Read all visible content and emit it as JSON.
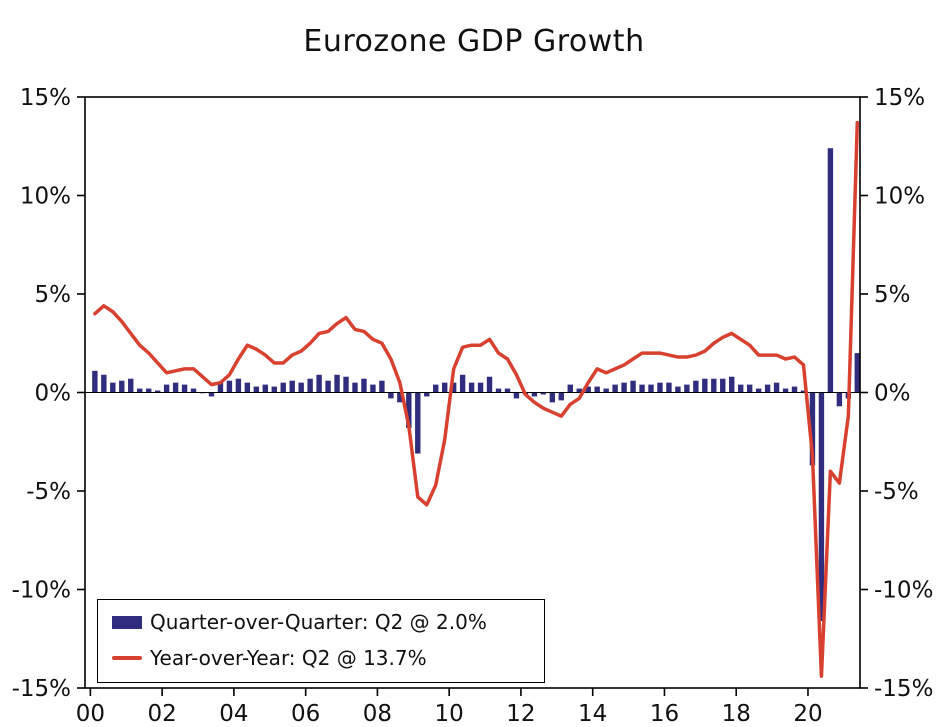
{
  "chart_data": {
    "type": "combo",
    "title": "Eurozone GDP Growth",
    "x_start": "2000Q1",
    "x_end": "2021Q2",
    "frequency": "quarterly",
    "ylim": [
      -15,
      15
    ],
    "ytick_values": [
      -15,
      -10,
      -5,
      0,
      5,
      10,
      15
    ],
    "ytick_labels": [
      "-15%",
      "-10%",
      "-5%",
      "0%",
      "5%",
      "10%",
      "15%"
    ],
    "xtick_years": [
      2000,
      2002,
      2004,
      2006,
      2008,
      2010,
      2012,
      2014,
      2016,
      2018,
      2020
    ],
    "xtick_labels": [
      "00",
      "02",
      "04",
      "06",
      "08",
      "10",
      "12",
      "14",
      "16",
      "18",
      "20"
    ],
    "grid": false,
    "legend_position": "bottom-left",
    "series": [
      {
        "name": "Quarter-over-Quarter: Q2 @ 2.0%",
        "type": "bar",
        "color": "#312d7e",
        "values": [
          1.1,
          0.9,
          0.5,
          0.6,
          0.7,
          0.2,
          0.2,
          0.1,
          0.4,
          0.5,
          0.4,
          0.2,
          0.0,
          -0.2,
          0.5,
          0.6,
          0.7,
          0.5,
          0.3,
          0.4,
          0.3,
          0.5,
          0.6,
          0.5,
          0.7,
          0.9,
          0.6,
          0.9,
          0.8,
          0.5,
          0.7,
          0.4,
          0.6,
          -0.3,
          -0.5,
          -1.8,
          -3.1,
          -0.2,
          0.4,
          0.5,
          0.5,
          0.9,
          0.5,
          0.5,
          0.8,
          0.2,
          0.2,
          -0.3,
          -0.1,
          -0.2,
          -0.1,
          -0.5,
          -0.4,
          0.4,
          0.2,
          0.3,
          0.3,
          0.2,
          0.4,
          0.5,
          0.6,
          0.4,
          0.4,
          0.5,
          0.5,
          0.3,
          0.4,
          0.6,
          0.7,
          0.7,
          0.7,
          0.8,
          0.4,
          0.4,
          0.2,
          0.4,
          0.5,
          0.2,
          0.3,
          0.1,
          -3.7,
          -11.6,
          12.4,
          -0.7,
          -0.3,
          2.0
        ]
      },
      {
        "name": "Year-over-Year: Q2 @ 13.7%",
        "type": "line",
        "color": "#d8402f",
        "values": [
          4.0,
          4.4,
          4.1,
          3.6,
          3.0,
          2.4,
          2.0,
          1.5,
          1.0,
          1.1,
          1.2,
          1.2,
          0.8,
          0.4,
          0.5,
          0.9,
          1.7,
          2.4,
          2.2,
          1.9,
          1.5,
          1.5,
          1.9,
          2.1,
          2.5,
          3.0,
          3.1,
          3.5,
          3.8,
          3.2,
          3.1,
          2.7,
          2.5,
          1.7,
          0.5,
          -1.7,
          -5.3,
          -5.7,
          -4.7,
          -2.4,
          1.2,
          2.3,
          2.4,
          2.4,
          2.7,
          2.0,
          1.7,
          0.9,
          -0.1,
          -0.5,
          -0.8,
          -1.0,
          -1.2,
          -0.6,
          -0.3,
          0.5,
          1.2,
          1.0,
          1.2,
          1.4,
          1.7,
          2.0,
          2.0,
          2.0,
          1.9,
          1.8,
          1.8,
          1.9,
          2.1,
          2.5,
          2.8,
          3.0,
          2.7,
          2.4,
          1.9,
          1.9,
          1.9,
          1.7,
          1.8,
          1.4,
          -3.2,
          -14.4,
          -4.0,
          -4.6,
          -1.2,
          13.7
        ]
      }
    ]
  }
}
